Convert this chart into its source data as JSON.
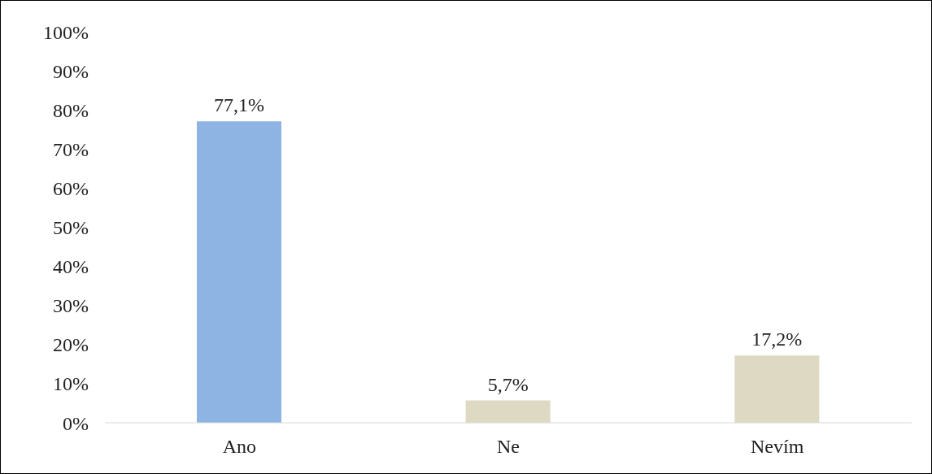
{
  "chart_data": {
    "type": "bar",
    "categories": [
      "Ano",
      "Ne",
      "Nevím"
    ],
    "values": [
      77.1,
      5.7,
      17.2
    ],
    "colors": [
      "#8eb4e3",
      "#ddd9c3",
      "#ddd9c3"
    ],
    "value_labels": [
      "77,1%",
      "5,7%",
      "17,2%"
    ],
    "ylim": [
      0,
      100
    ],
    "yticks": [
      {
        "value": 0,
        "label": "0%"
      },
      {
        "value": 10,
        "label": "10%"
      },
      {
        "value": 20,
        "label": "20%"
      },
      {
        "value": 30,
        "label": "30%"
      },
      {
        "value": 40,
        "label": "40%"
      },
      {
        "value": 50,
        "label": "50%"
      },
      {
        "value": 60,
        "label": "60%"
      },
      {
        "value": 70,
        "label": "70%"
      },
      {
        "value": 80,
        "label": "80%"
      },
      {
        "value": 90,
        "label": "90%"
      },
      {
        "value": 100,
        "label": "100%"
      }
    ],
    "grid": false,
    "legend": false
  }
}
